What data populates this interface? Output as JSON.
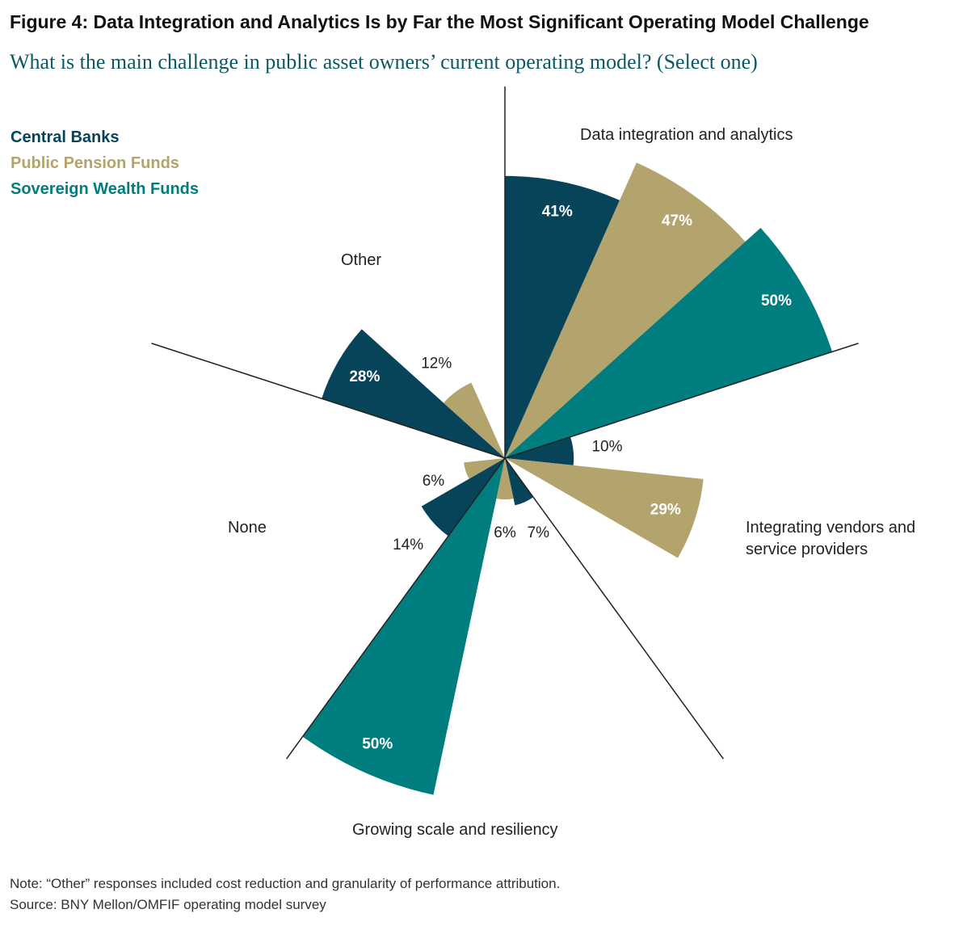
{
  "chart_data": {
    "type": "polar_bar",
    "title": "Figure 4: Data Integration and Analytics Is by Far the Most Significant Operating Model Challenge",
    "subtitle": "What is the main challenge in public asset owners’ current operating model? (Select one)",
    "categories": [
      "Data integration and analytics",
      "Integrating vendors and service providers",
      "Growing scale and resiliency",
      "None",
      "Other"
    ],
    "series": [
      {
        "name": "Central Banks",
        "color": "#07445a",
        "values": [
          41,
          10,
          7,
          14,
          28
        ]
      },
      {
        "name": "Public Pension Funds",
        "color": "#b3a46e",
        "values": [
          47,
          29,
          6,
          6,
          12
        ]
      },
      {
        "name": "Sovereign Wealth Funds",
        "color": "#007e7f",
        "values": [
          50,
          null,
          50,
          null,
          null
        ]
      }
    ],
    "rlim": [
      0,
      54
    ],
    "notes": [
      "Note: “Other” responses included cost reduction and granularity of performance attribution.",
      "Source: BNY Mellon/OMFIF operating model survey"
    ]
  }
}
